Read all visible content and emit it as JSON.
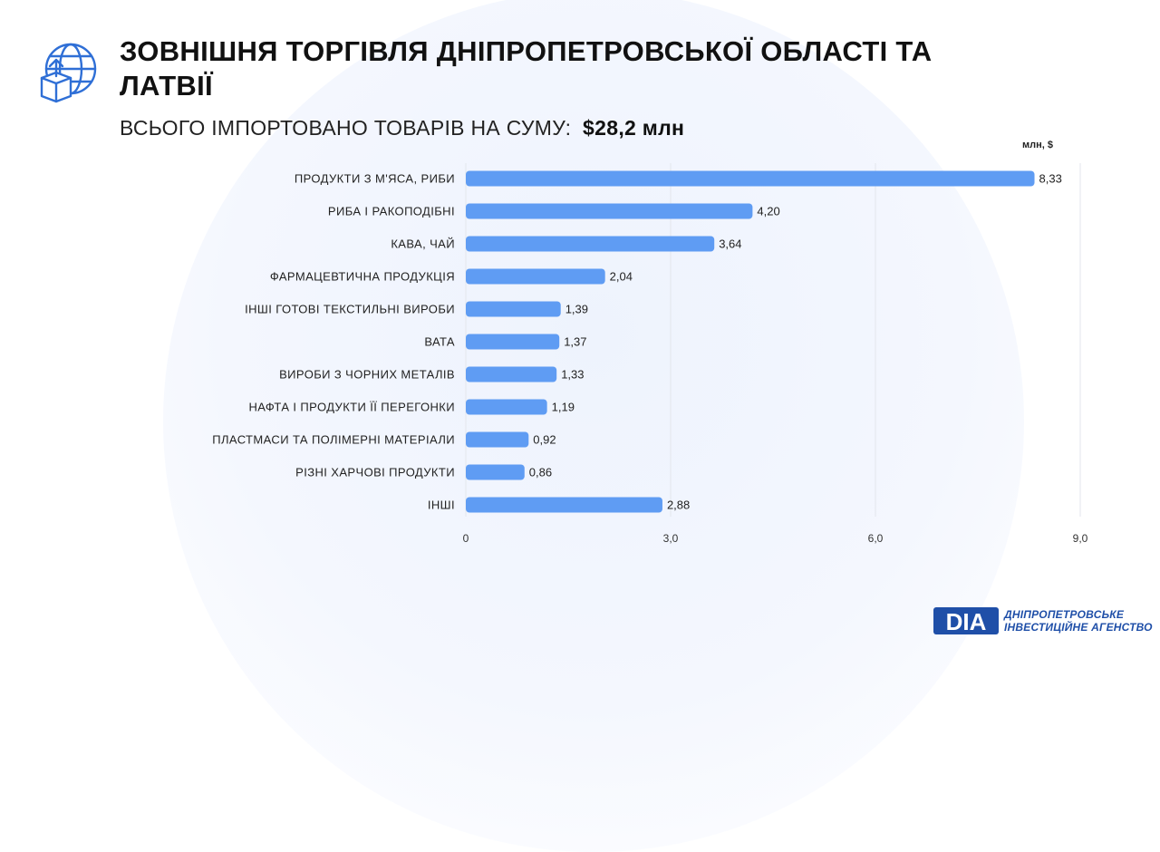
{
  "header": {
    "title": "ЗОВНІШНЯ ТОРГІВЛЯ ДНІПРОПЕТРОВСЬКОЇ ОБЛАСТІ ТА ЛАТВІЇ",
    "subtitle_prefix": "ВСЬОГО ІМПОРТОВАНО ТОВАРІВ НА СУМУ:",
    "subtitle_amount": "$28,2 млн"
  },
  "footer": {
    "logo_mark": "DIA",
    "line1": "ДНІПРОПЕТРОВСЬКЕ",
    "line2": "ІНВЕСТИЦІЙНЕ АГЕНСТВО"
  },
  "colors": {
    "bar": "#5f9cf3",
    "accent": "#1f4fa8",
    "grid": "#e3e6ec"
  },
  "icons": {
    "header": "globe-box-upload-icon"
  },
  "chart_data": {
    "type": "bar",
    "orientation": "horizontal",
    "unit_label": "млн, $",
    "categories": [
      "ПРОДУКТИ З М'ЯСА, РИБИ",
      "РИБА І РАКОПОДІБНІ",
      "КАВА, ЧАЙ",
      "ФАРМАЦЕВТИЧНА ПРОДУКЦІЯ",
      "ІНШІ ГОТОВІ ТЕКСТИЛЬНІ ВИРОБИ",
      "ВАТА",
      "ВИРОБИ З ЧОРНИХ МЕТАЛІВ",
      "НАФТА І ПРОДУКТИ ЇЇ ПЕРЕГОНКИ",
      "ПЛАСТМАСИ ТА ПОЛІМЕРНІ МАТЕРІАЛИ",
      "РІЗНІ ХАРЧОВІ ПРОДУКТИ",
      "ІНШІ"
    ],
    "values": [
      8.33,
      4.2,
      3.64,
      2.04,
      1.39,
      1.37,
      1.33,
      1.19,
      0.92,
      0.86,
      2.88
    ],
    "value_labels": [
      "8,33",
      "4,20",
      "3,64",
      "2,04",
      "1,39",
      "1,37",
      "1,33",
      "1,19",
      "0,92",
      "0,86",
      "2,88"
    ],
    "xlim": [
      0,
      9
    ],
    "x_ticks": [
      0,
      3,
      6,
      9
    ],
    "x_tick_labels": [
      "0",
      "3,0",
      "6,0",
      "9,0"
    ],
    "grid": true,
    "legend": "none"
  }
}
